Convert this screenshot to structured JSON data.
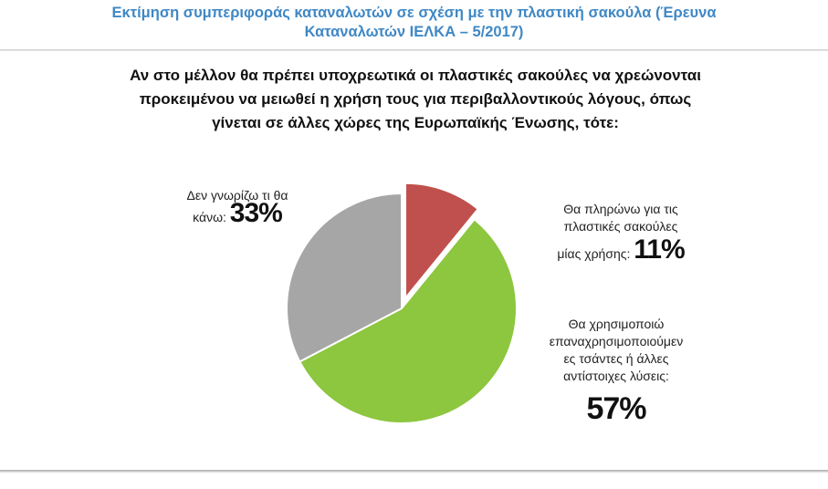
{
  "header": {
    "title_line1": "Εκτίμηση συμπεριφοράς καταναλωτών σε σχέση με την πλαστική σακούλα (Έρευνα",
    "title_line2": "Καταναλωτών ΙΕΛΚΑ – 5/2017)"
  },
  "question": {
    "line1": "Αν στο μέλλον θα πρέπει υποχρεωτικά οι πλαστικές σακούλες να χρεώνονται",
    "line2": "προκειμένου να μειωθεί η χρήση τους για περιβαλλοντικούς λόγους, όπως",
    "line3": "γίνεται σε άλλες χώρες της Ευρωπαϊκής Ένωσης, τότε:"
  },
  "labels": {
    "dont_know_line1": "Δεν γνωρίζω τι θα",
    "dont_know_line2": "κάνω:",
    "dont_know_pct": "33%",
    "pay_line1": "Θα πληρώνω για τις",
    "pay_line2": "πλαστικές σακούλες",
    "pay_line3": "μίας χρήσης:",
    "pay_pct": "11%",
    "reuse_line1": "Θα χρησιμοποιώ",
    "reuse_line2": "επαναχρησιμοποιούμεν",
    "reuse_line3": "ες τσάντες ή άλλες",
    "reuse_line4": "αντίστοιχες λύσεις:",
    "reuse_pct": "57%"
  },
  "chart_data": {
    "type": "pie",
    "title": "Αν στο μέλλον θα πρέπει υποχρεωτικά οι πλαστικές σακούλες να χρεώνονται προκειμένου να μειωθεί η χρήση τους για περιβαλλοντικούς λόγους, όπως γίνεται σε άλλες χώρες της Ευρωπαϊκής Ένωσης, τότε:",
    "slices": [
      {
        "label": "Θα πληρώνω για τις πλαστικές σακούλες μίας χρήσης:",
        "value": 11,
        "color": "#c0504d",
        "exploded": true
      },
      {
        "label": "Θα χρησιμοποιώ επαναχρησιμοποιούμενες τσάντες ή άλλες αντίστοιχες λύσεις:",
        "value": 57,
        "color": "#8dc63f",
        "exploded": false
      },
      {
        "label": "Δεν γνωρίζω τι θα κάνω:",
        "value": 33,
        "color": "#a6a6a6",
        "exploded": false
      }
    ],
    "start_angle_deg": 0,
    "direction": "clockwise",
    "legend": "none"
  }
}
